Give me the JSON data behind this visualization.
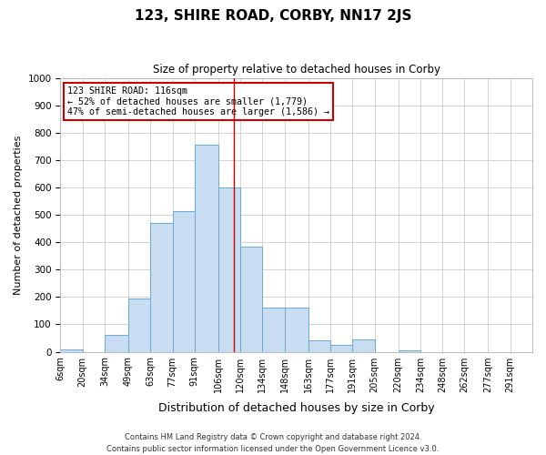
{
  "title": "123, SHIRE ROAD, CORBY, NN17 2JS",
  "subtitle": "Size of property relative to detached houses in Corby",
  "xlabel": "Distribution of detached houses by size in Corby",
  "ylabel": "Number of detached properties",
  "bin_labels": [
    "6sqm",
    "20sqm",
    "34sqm",
    "49sqm",
    "63sqm",
    "77sqm",
    "91sqm",
    "106sqm",
    "120sqm",
    "134sqm",
    "148sqm",
    "163sqm",
    "177sqm",
    "191sqm",
    "205sqm",
    "220sqm",
    "234sqm",
    "248sqm",
    "262sqm",
    "277sqm",
    "291sqm"
  ],
  "bin_edges": [
    6,
    20,
    34,
    49,
    63,
    77,
    91,
    106,
    120,
    134,
    148,
    163,
    177,
    191,
    205,
    220,
    234,
    248,
    262,
    277,
    291
  ],
  "bar_heights": [
    10,
    0,
    60,
    195,
    470,
    515,
    755,
    600,
    385,
    160,
    160,
    40,
    25,
    45,
    0,
    5,
    0,
    0,
    0,
    0
  ],
  "bar_color": "#c9ddf2",
  "bar_edge_color": "#6aaad4",
  "vline_x": 116,
  "vline_color": "#cc0000",
  "ylim": [
    0,
    1000
  ],
  "yticks": [
    0,
    100,
    200,
    300,
    400,
    500,
    600,
    700,
    800,
    900,
    1000
  ],
  "annotation_text": "123 SHIRE ROAD: 116sqm\n← 52% of detached houses are smaller (1,779)\n47% of semi-detached houses are larger (1,586) →",
  "annotation_box_color": "#ffffff",
  "annotation_box_edge_color": "#cc0000",
  "footer_line1": "Contains HM Land Registry data © Crown copyright and database right 2024.",
  "footer_line2": "Contains public sector information licensed under the Open Government Licence v3.0.",
  "bg_color": "#ffffff",
  "grid_color": "#cccccc"
}
